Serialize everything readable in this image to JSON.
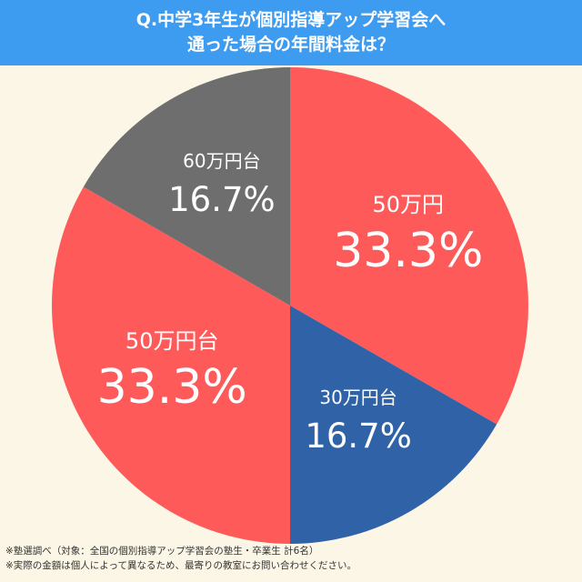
{
  "header": {
    "title_line1": "Q.中学3年生が個別指導アップ学習会へ",
    "title_line2": "通った場合の年間料金は？"
  },
  "chart_data": {
    "type": "pie",
    "slices": [
      {
        "label": "50万円",
        "value": 33.3,
        "percent_label": "33.3%",
        "color": "#fe5a5a"
      },
      {
        "label": "30万円台",
        "value": 16.7,
        "percent_label": "16.7%",
        "color": "#2f62a6"
      },
      {
        "label": "50万円台",
        "value": 33.3,
        "percent_label": "33.3%",
        "color": "#fe5a5a"
      },
      {
        "label": "60万円台",
        "value": 16.7,
        "percent_label": "16.7%",
        "color": "#6e6e6e"
      }
    ],
    "start_angle_deg": 0,
    "direction": "clockwise",
    "label_color": "#ffffff"
  },
  "footnotes": {
    "note1": "※塾選調べ（対象：全国の個別指導アップ学習会の塾生・卒業生 計6名）",
    "note2": "※実際の金額は個人によって異なるため、最寄りの教室にお問い合わせください。"
  }
}
